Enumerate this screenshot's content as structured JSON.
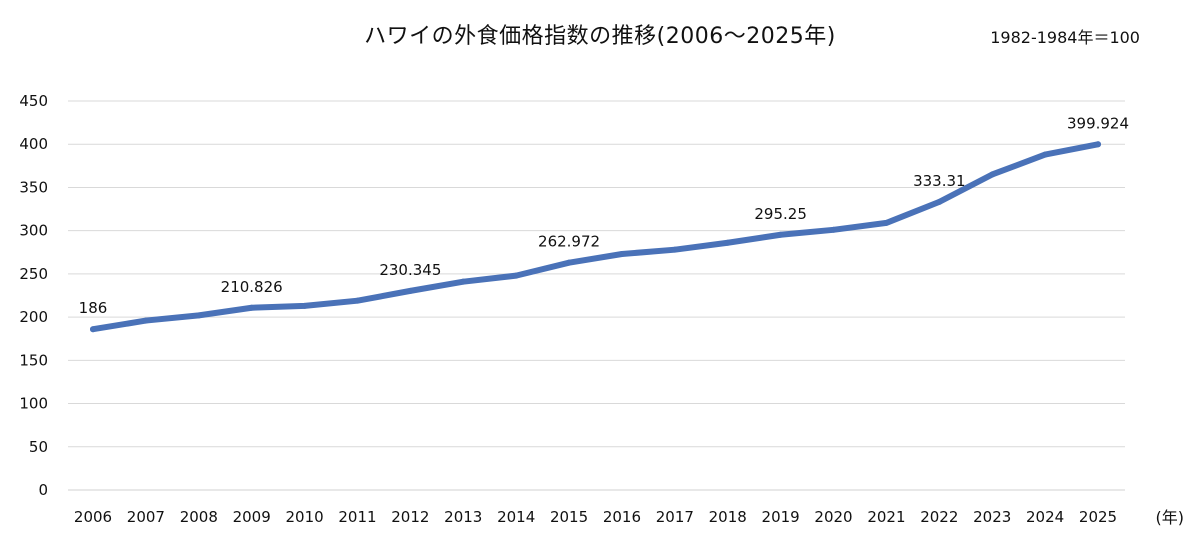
{
  "chart_data": {
    "type": "line",
    "title": "ハワイの外食価格指数の推移(2006〜2025年)",
    "note": "1982-1984年＝100",
    "unit_label": "(年)",
    "categories": [
      "2006",
      "2007",
      "2008",
      "2009",
      "2010",
      "2011",
      "2012",
      "2013",
      "2014",
      "2015",
      "2016",
      "2017",
      "2018",
      "2019",
      "2020",
      "2021",
      "2022",
      "2023",
      "2024",
      "2025"
    ],
    "series": [
      {
        "values": [
          186,
          196,
          202,
          210.826,
          213,
          219,
          230.345,
          241,
          248,
          262.972,
          273,
          278,
          286,
          295.25,
          301,
          309,
          333.31,
          365,
          388,
          399.924
        ]
      }
    ],
    "data_labels": [
      {
        "index": 0,
        "text": "186"
      },
      {
        "index": 3,
        "text": "210.826"
      },
      {
        "index": 6,
        "text": "230.345"
      },
      {
        "index": 9,
        "text": "262.972"
      },
      {
        "index": 13,
        "text": "295.25"
      },
      {
        "index": 16,
        "text": "333.31"
      },
      {
        "index": 19,
        "text": "399.924"
      }
    ],
    "y_ticks": [
      0,
      50,
      100,
      150,
      200,
      250,
      300,
      350,
      400,
      450
    ],
    "ylim": [
      0,
      450
    ],
    "grid": true,
    "line_color": "#4a72b8",
    "grid_color": "#d9d9d9"
  }
}
